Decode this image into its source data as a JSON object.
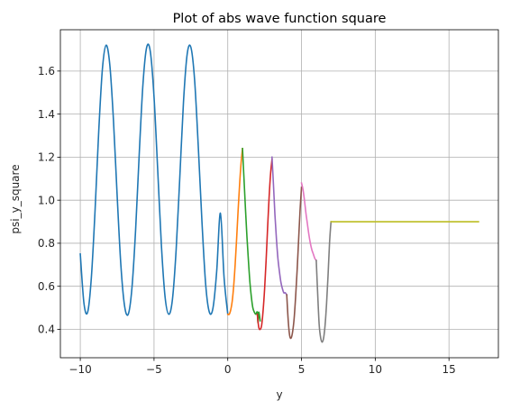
{
  "chart_data": {
    "type": "line",
    "title": "Plot of abs wave function square",
    "xlabel": "y",
    "ylabel": "psi_y_square",
    "xlim": [
      -11.35,
      18.35
    ],
    "ylim": [
      0.268,
      1.792
    ],
    "xticks": [
      -10,
      -5,
      0,
      5,
      10,
      15
    ],
    "xtick_labels": [
      "−10",
      "−5",
      "0",
      "5",
      "10",
      "15"
    ],
    "yticks": [
      0.4,
      0.6,
      0.8,
      1.0,
      1.2,
      1.4,
      1.6
    ],
    "ytick_labels": [
      "0.4",
      "0.6",
      "0.8",
      "1.0",
      "1.2",
      "1.4",
      "1.6"
    ],
    "grid": true,
    "legend": "none",
    "series": [
      {
        "color": "#1f77b4",
        "x": [
          -10,
          -9.75,
          -9.5,
          -9.25,
          -9.0,
          -8.75,
          -8.5,
          -8.25,
          -8.0,
          -7.75,
          -7.5,
          -7.25,
          -7.0,
          -6.75,
          -6.5,
          -6.25,
          -6.0,
          -5.75,
          -5.5,
          -5.25,
          -5.0,
          -4.75,
          -4.5,
          -4.25,
          -4.0,
          -3.75,
          -3.5,
          -3.25,
          -3.0,
          -2.75,
          -2.5,
          -2.25,
          -2.0,
          -1.75,
          -1.5,
          -1.25,
          -1.0,
          -0.75,
          -0.5,
          -0.25,
          0.0
        ],
        "y": [
          0.75,
          0.52,
          0.48,
          0.64,
          0.95,
          1.32,
          1.61,
          1.72,
          1.63,
          1.37,
          1.02,
          0.7,
          0.51,
          0.47,
          0.59,
          0.86,
          1.22,
          1.54,
          1.71,
          1.69,
          1.48,
          1.14,
          0.79,
          0.55,
          0.47,
          0.54,
          0.77,
          1.11,
          1.46,
          1.68,
          1.71,
          1.56,
          1.25,
          0.9,
          0.61,
          0.48,
          0.5,
          0.67,
          0.94,
          0.64,
          0.47
        ]
      },
      {
        "color": "#ff7f0e",
        "x": [
          0.0,
          0.1,
          0.2,
          0.3,
          0.4,
          0.5,
          0.6,
          0.7,
          0.8,
          0.9,
          1.0
        ],
        "y": [
          0.47,
          0.47,
          0.49,
          0.53,
          0.6,
          0.7,
          0.82,
          0.95,
          1.07,
          1.17,
          1.24
        ]
      },
      {
        "color": "#2ca02c",
        "x": [
          1.0,
          1.1,
          1.2,
          1.3,
          1.4,
          1.5,
          1.6,
          1.7,
          1.8,
          1.9,
          2.0,
          2.05,
          2.1,
          2.2
        ],
        "y": [
          1.24,
          1.1,
          0.96,
          0.83,
          0.72,
          0.62,
          0.55,
          0.5,
          0.48,
          0.47,
          0.48,
          0.43,
          0.48,
          0.44
        ]
      },
      {
        "color": "#d62728",
        "x": [
          2.0,
          2.1,
          2.2,
          2.3,
          2.4,
          2.5,
          2.6,
          2.7,
          2.8,
          2.9,
          3.0
        ],
        "y": [
          0.47,
          0.41,
          0.4,
          0.42,
          0.49,
          0.59,
          0.72,
          0.87,
          1.01,
          1.12,
          1.19
        ]
      },
      {
        "color": "#9467bd",
        "x": [
          3.0,
          3.1,
          3.2,
          3.3,
          3.4,
          3.5,
          3.6,
          3.7,
          3.8,
          3.9,
          4.0
        ],
        "y": [
          1.2,
          1.07,
          0.93,
          0.82,
          0.73,
          0.67,
          0.62,
          0.59,
          0.57,
          0.57,
          0.56
        ]
      },
      {
        "color": "#8c564b",
        "x": [
          4.0,
          4.1,
          4.2,
          4.3,
          4.4,
          4.5,
          4.6,
          4.7,
          4.8,
          4.9,
          5.0
        ],
        "y": [
          0.56,
          0.44,
          0.37,
          0.36,
          0.39,
          0.45,
          0.55,
          0.67,
          0.81,
          0.95,
          1.06
        ]
      },
      {
        "color": "#e377c2",
        "x": [
          5.0,
          5.1,
          5.2,
          5.3,
          5.4,
          5.5,
          5.6,
          5.7,
          5.8,
          5.9,
          6.0
        ],
        "y": [
          1.08,
          1.05,
          1.0,
          0.94,
          0.89,
          0.84,
          0.8,
          0.77,
          0.75,
          0.73,
          0.72
        ]
      },
      {
        "color": "#7f7f7f",
        "x": [
          6.0,
          6.1,
          6.2,
          6.3,
          6.4,
          6.5,
          6.6,
          6.7,
          6.8,
          6.9,
          7.0
        ],
        "y": [
          0.72,
          0.56,
          0.42,
          0.36,
          0.34,
          0.36,
          0.42,
          0.52,
          0.65,
          0.8,
          0.9
        ]
      },
      {
        "color": "#bcbd22",
        "x": [
          7.0,
          17.0
        ],
        "y": [
          0.9,
          0.9
        ]
      }
    ]
  }
}
